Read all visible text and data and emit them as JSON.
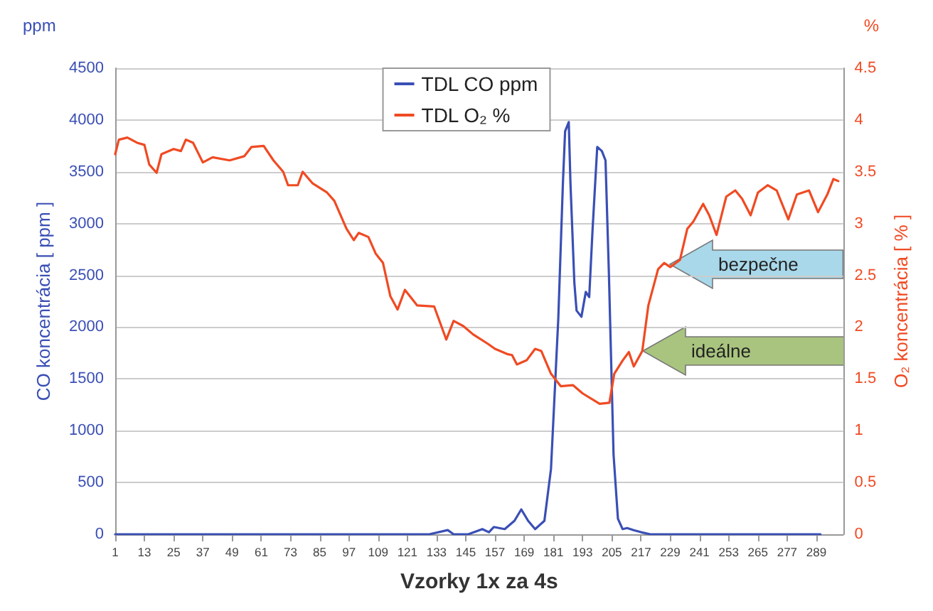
{
  "chart_data": {
    "type": "line",
    "xlabel": "Vzorky 1x za 4s",
    "ylabel": "CO koncentrácia [ ppm ]",
    "y2label": "O₂ koncentrácia [ % ]",
    "xlim": [
      1,
      300
    ],
    "xticks": [
      1,
      13,
      25,
      37,
      49,
      61,
      73,
      85,
      97,
      109,
      121,
      133,
      145,
      157,
      169,
      181,
      193,
      205,
      217,
      229,
      241,
      253,
      265,
      277,
      289
    ],
    "ylim": [
      0,
      4500
    ],
    "yticks": [
      0,
      500,
      1000,
      1500,
      2000,
      2500,
      3000,
      3500,
      4000,
      4500
    ],
    "y2lim": [
      0,
      4.5
    ],
    "y2ticks": [
      0,
      0.5,
      1,
      1.5,
      2,
      2.5,
      3,
      3.5,
      4,
      4.5
    ],
    "grid": "y",
    "legend": "top",
    "marker": "none",
    "line_style": "solid",
    "series": [
      {
        "name": "TDL CO ppm",
        "color": "#3a4fb5",
        "x": [
          1,
          130,
          137.6,
          140,
          146,
          151.8,
          154.5,
          156.5,
          161,
          165,
          167.8,
          170.6,
          173.5,
          177.3,
          180,
          183,
          184.9,
          185.8,
          187.3,
          188,
          189.6,
          190.5,
          192.5,
          194.3,
          195.7,
          197.1,
          199,
          200.9,
          202.4,
          203.8,
          205.7,
          207.5,
          209.4,
          211.3,
          214,
          217,
          220.8,
          290.7
        ],
        "values": [
          0,
          0,
          40,
          0,
          0,
          50,
          20,
          70,
          50,
          130,
          240,
          130,
          50,
          130,
          630,
          2080,
          3390,
          3890,
          3980,
          3390,
          2430,
          2160,
          2100,
          2340,
          2290,
          2950,
          3740,
          3700,
          3610,
          2510,
          770,
          150,
          50,
          60,
          40,
          20,
          0,
          0
        ]
      },
      {
        "name": "TDL O₂ %",
        "color": "#f04a23",
        "axis": "y2",
        "x": [
          1,
          2.5,
          6,
          10,
          13,
          15,
          18,
          20,
          25,
          28,
          30,
          33,
          37,
          41,
          48,
          54,
          57,
          62,
          66,
          70,
          72,
          76,
          78,
          82,
          88,
          91,
          96,
          99,
          101,
          105,
          108,
          111,
          114,
          117,
          120,
          125,
          132,
          137,
          140,
          144,
          148,
          154,
          157,
          162,
          164,
          166,
          170,
          173.5,
          176,
          180,
          184,
          189,
          193,
          200,
          204,
          206,
          209.5,
          212,
          214,
          217.5,
          220,
          224,
          226.5,
          229,
          233,
          236,
          238.5,
          242.5,
          245,
          248,
          252,
          255.7,
          258.5,
          262,
          265,
          269,
          272.7,
          277.5,
          281,
          286,
          289.7,
          293.5,
          296,
          298
        ],
        "values": [
          3.67,
          3.81,
          3.83,
          3.78,
          3.76,
          3.57,
          3.49,
          3.67,
          3.72,
          3.7,
          3.81,
          3.78,
          3.59,
          3.64,
          3.61,
          3.65,
          3.74,
          3.75,
          3.61,
          3.5,
          3.37,
          3.37,
          3.5,
          3.39,
          3.3,
          3.22,
          2.95,
          2.84,
          2.91,
          2.87,
          2.71,
          2.62,
          2.3,
          2.17,
          2.36,
          2.21,
          2.2,
          1.88,
          2.06,
          2.01,
          1.93,
          1.84,
          1.79,
          1.74,
          1.73,
          1.64,
          1.68,
          1.79,
          1.77,
          1.55,
          1.43,
          1.44,
          1.36,
          1.26,
          1.27,
          1.55,
          1.68,
          1.76,
          1.62,
          1.77,
          2.21,
          2.56,
          2.62,
          2.58,
          2.65,
          2.95,
          3.02,
          3.19,
          3.08,
          2.89,
          3.26,
          3.32,
          3.24,
          3.08,
          3.3,
          3.37,
          3.32,
          3.04,
          3.28,
          3.32,
          3.11,
          3.28,
          3.43,
          3.41
        ]
      }
    ],
    "annotations": [
      "ppm",
      "%",
      {
        "text": "bezpečne",
        "x": 229,
        "y": 2600
      },
      {
        "text": "ideálne",
        "x": 217.5,
        "y": 1770
      }
    ]
  }
}
